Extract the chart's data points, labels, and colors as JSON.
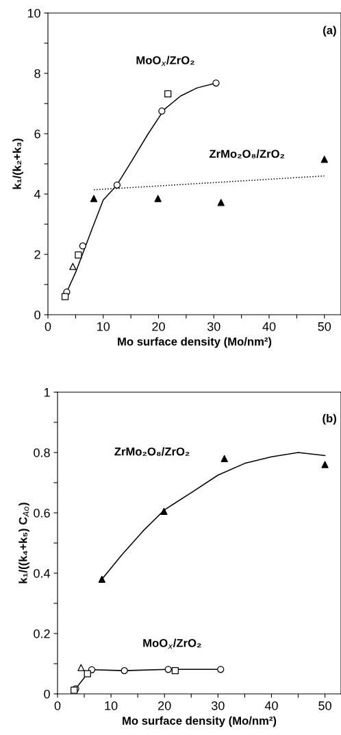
{
  "chart_data": [
    {
      "type": "scatter",
      "xlabel": "Mo surface density (Mo/nm²)",
      "ylabel": "k₁/(k₂+k₃)",
      "xlim": [
        0,
        53
      ],
      "ylim": [
        0,
        10
      ],
      "xticks": [
        0,
        {
          "value": 5,
          "label": null
        },
        10,
        {
          "value": 15,
          "label": null
        },
        20,
        {
          "value": 25,
          "label": null
        },
        30,
        {
          "value": 35,
          "label": null
        },
        40,
        {
          "value": 45,
          "label": null
        },
        50
      ],
      "yticks": [
        0,
        {
          "value": 1,
          "label": null
        },
        2,
        {
          "value": 3,
          "label": null
        },
        4,
        {
          "value": 5,
          "label": null
        },
        6,
        {
          "value": 7,
          "label": null
        },
        8,
        {
          "value": 9,
          "label": null
        },
        10
      ],
      "grid": false,
      "legend": false,
      "series": [
        {
          "type": "line",
          "color": "#000000",
          "marker": "none",
          "line_style": "solid",
          "x": [
            3.4,
            5,
            8,
            10,
            12.4,
            15,
            18,
            21,
            24,
            27,
            30.4
          ],
          "values": [
            0.75,
            1.4,
            2.85,
            3.8,
            4.28,
            5.05,
            5.96,
            6.8,
            7.25,
            7.52,
            7.68
          ]
        },
        {
          "type": "line",
          "color": "#000000",
          "marker": "none",
          "line_style": "dotted",
          "x": [
            8.3,
            50
          ],
          "values": [
            4.14,
            4.6
          ]
        },
        {
          "color": "#ffffff",
          "marker": "circle",
          "x": [
            3.4,
            6.3,
            12.5,
            20.6,
            30.4
          ],
          "values": [
            0.75,
            2.28,
            4.3,
            6.75,
            7.68
          ]
        },
        {
          "color": "#ffffff",
          "marker": "square",
          "x": [
            3.1,
            5.5,
            21.7
          ],
          "values": [
            0.6,
            1.98,
            7.32
          ]
        },
        {
          "color": "#ffffff",
          "marker": "triangle",
          "x": [
            4.5
          ],
          "values": [
            1.6
          ]
        },
        {
          "color": "#000000",
          "marker": "triangle",
          "x": [
            8.3,
            19.9,
            31.3,
            50
          ],
          "values": [
            3.85,
            3.85,
            3.72,
            5.15
          ]
        }
      ],
      "annotations": [
        "(a)",
        "MoO$_{x}$/ZrO₂",
        "ZrMo₂O₈/ZrO₂"
      ]
    },
    {
      "type": "scatter",
      "xlabel": "Mo surface density (Mo/nm²)",
      "ylabel": "k₁/((k₄+k₅) C$_{Ao}$)",
      "xlim": [
        0,
        53
      ],
      "ylim": [
        0,
        1
      ],
      "xticks": [
        0,
        {
          "value": 5,
          "label": null
        },
        10,
        {
          "value": 15,
          "label": null
        },
        20,
        {
          "value": 25,
          "label": null
        },
        30,
        {
          "value": 35,
          "label": null
        },
        40,
        {
          "value": 45,
          "label": null
        },
        50
      ],
      "yticks": [
        0,
        {
          "value": 0.1,
          "label": null
        },
        0.2,
        {
          "value": 0.3,
          "label": null
        },
        0.4,
        {
          "value": 0.5,
          "label": null
        },
        0.6,
        {
          "value": 0.7,
          "label": null
        },
        0.8,
        {
          "value": 0.9,
          "label": null
        },
        1
      ],
      "grid": false,
      "legend": false,
      "series": [
        {
          "type": "line",
          "color": "#000000",
          "marker": "none",
          "line_style": "solid",
          "x": [
            8.3,
            12,
            16,
            20,
            25,
            30,
            35,
            40,
            45,
            50
          ],
          "values": [
            0.38,
            0.46,
            0.54,
            0.61,
            0.667,
            0.725,
            0.764,
            0.786,
            0.8,
            0.79
          ]
        },
        {
          "type": "line",
          "color": "#000000",
          "marker": "none",
          "line_style": "solid",
          "x": [
            3.4,
            5.6,
            6.4,
            12.5,
            20.7,
            30.5
          ],
          "values": [
            0.017,
            0.067,
            0.08,
            0.077,
            0.081,
            0.081
          ]
        },
        {
          "color": "#ffffff",
          "marker": "circle",
          "x": [
            3.4,
            6.4,
            12.5,
            20.7,
            30.5
          ],
          "values": [
            0.017,
            0.08,
            0.077,
            0.081,
            0.081
          ]
        },
        {
          "color": "#ffffff",
          "marker": "square",
          "x": [
            3.1,
            5.6,
            22
          ],
          "values": [
            0.012,
            0.067,
            0.077
          ]
        },
        {
          "color": "#ffffff",
          "marker": "triangle",
          "x": [
            4.4
          ],
          "values": [
            0.087
          ]
        },
        {
          "color": "#000000",
          "marker": "triangle",
          "x": [
            8.3,
            19.9,
            31.2,
            50
          ],
          "values": [
            0.38,
            0.605,
            0.78,
            0.76
          ]
        }
      ],
      "annotations": [
        "(b)",
        "MoO$_{x}$/ZrO₂",
        "ZrMo₂O₈/ZrO₂"
      ]
    }
  ]
}
